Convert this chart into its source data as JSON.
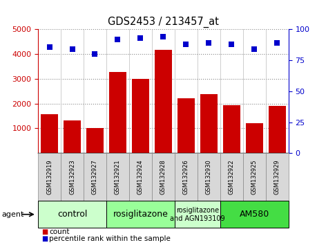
{
  "title": "GDS2453 / 213457_at",
  "samples": [
    "GSM132919",
    "GSM132923",
    "GSM132927",
    "GSM132921",
    "GSM132924",
    "GSM132928",
    "GSM132926",
    "GSM132930",
    "GSM132922",
    "GSM132925",
    "GSM132929"
  ],
  "counts": [
    1580,
    1310,
    1010,
    3290,
    2990,
    4170,
    2220,
    2390,
    1930,
    1210,
    1900
  ],
  "percentiles": [
    86,
    84,
    80,
    92,
    93,
    94,
    88,
    89,
    88,
    84,
    89
  ],
  "bar_color": "#cc0000",
  "dot_color": "#0000cc",
  "ylim_left": [
    0,
    5000
  ],
  "ylim_right": [
    0,
    100
  ],
  "yticks_left": [
    1000,
    2000,
    3000,
    4000,
    5000
  ],
  "yticks_right": [
    0,
    25,
    50,
    75,
    100
  ],
  "groups": [
    {
      "label": "control",
      "start": 0,
      "end": 3,
      "color": "#ccffcc"
    },
    {
      "label": "rosiglitazone",
      "start": 3,
      "end": 6,
      "color": "#99ff99"
    },
    {
      "label": "rosiglitazone\nand AGN193109",
      "start": 6,
      "end": 8,
      "color": "#ccffcc"
    },
    {
      "label": "AM580",
      "start": 8,
      "end": 11,
      "color": "#44dd44"
    }
  ],
  "legend_count_color": "#cc0000",
  "legend_dot_color": "#0000cc",
  "agent_label": "agent",
  "bg_color": "#ffffff",
  "plot_bg": "#ffffff",
  "xtick_box_color": "#cccccc",
  "grid_color": "#888888",
  "left_tick_color": "#cc0000",
  "right_tick_color": "#0000cc"
}
